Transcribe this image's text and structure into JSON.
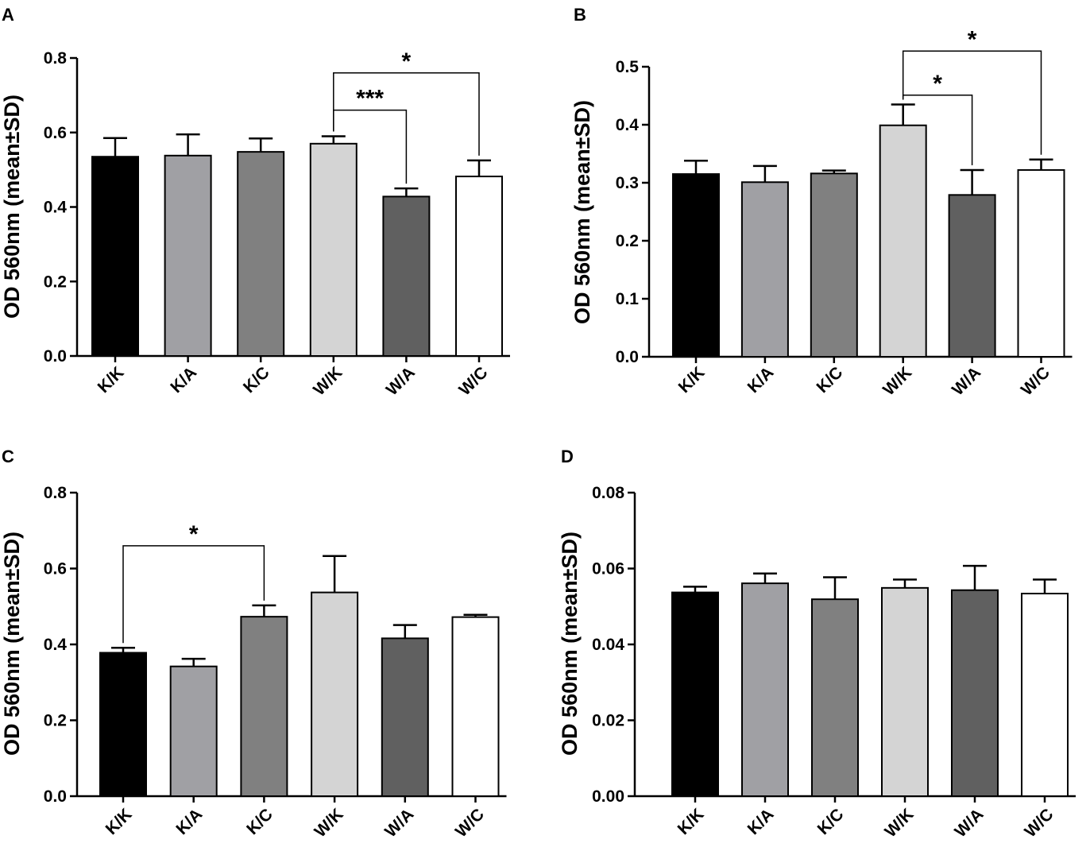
{
  "colors": {
    "K/K": "#000000",
    "K/A": "#a0a0a4",
    "K/C": "#808080",
    "W/K": "#d4d4d4",
    "W/A": "#606060",
    "W/C": "#ffffff"
  },
  "chart_data": [
    {
      "type": "bar",
      "panel": "A",
      "categories": [
        "K/K",
        "K/A",
        "K/C",
        "W/K",
        "W/A",
        "W/C"
      ],
      "values": [
        0.535,
        0.538,
        0.548,
        0.57,
        0.428,
        0.482
      ],
      "errors": [
        0.05,
        0.057,
        0.036,
        0.02,
        0.022,
        0.043
      ],
      "ylabel": "OD 560nm (mean±SD)",
      "ylim": [
        0,
        0.8
      ],
      "yticks": [
        "0.0",
        "0.2",
        "0.4",
        "0.6",
        "0.8"
      ],
      "significance": [
        {
          "from": 3,
          "to": 4,
          "label": "***",
          "level": 0.66
        },
        {
          "from": 3,
          "to": 5,
          "label": "*",
          "level": 0.76
        }
      ]
    },
    {
      "type": "bar",
      "panel": "B",
      "categories": [
        "K/K",
        "K/A",
        "K/C",
        "W/K",
        "W/A",
        "W/C"
      ],
      "values": [
        0.315,
        0.301,
        0.316,
        0.399,
        0.279,
        0.322
      ],
      "errors": [
        0.023,
        0.028,
        0.005,
        0.036,
        0.043,
        0.018
      ],
      "ylabel": "OD 560nm (mean±SD)",
      "ylim": [
        0,
        0.5
      ],
      "yticks": [
        "0.0",
        "0.1",
        "0.2",
        "0.3",
        "0.4",
        "0.5"
      ],
      "significance": [
        {
          "from": 3,
          "to": 4,
          "label": "*",
          "level": 0.451
        },
        {
          "from": 3,
          "to": 5,
          "label": "*",
          "level": 0.527
        }
      ]
    },
    {
      "type": "bar",
      "panel": "C",
      "categories": [
        "K/K",
        "K/A",
        "K/C",
        "W/K",
        "W/A",
        "W/C"
      ],
      "values": [
        0.378,
        0.342,
        0.473,
        0.537,
        0.416,
        0.472
      ],
      "errors": [
        0.013,
        0.02,
        0.03,
        0.096,
        0.035,
        0.006
      ],
      "ylabel": "OD 560nm (mean±SD)",
      "ylim": [
        0,
        0.8
      ],
      "yticks": [
        "0.0",
        "0.2",
        "0.4",
        "0.6",
        "0.8"
      ],
      "significance": [
        {
          "from": 0,
          "to": 2,
          "label": "*",
          "level": 0.66
        }
      ]
    },
    {
      "type": "bar",
      "panel": "D",
      "categories": [
        "K/K",
        "K/A",
        "K/C",
        "W/K",
        "W/A",
        "W/C"
      ],
      "values": [
        0.0537,
        0.0561,
        0.0519,
        0.0549,
        0.0543,
        0.0534
      ],
      "errors": [
        0.0015,
        0.0026,
        0.0058,
        0.0022,
        0.0064,
        0.0037
      ],
      "ylabel": "OD 560nm (mean±SD)",
      "ylim": [
        0,
        0.08
      ],
      "yticks": [
        "0.00",
        "0.02",
        "0.04",
        "0.06",
        "0.08"
      ],
      "significance": []
    }
  ]
}
